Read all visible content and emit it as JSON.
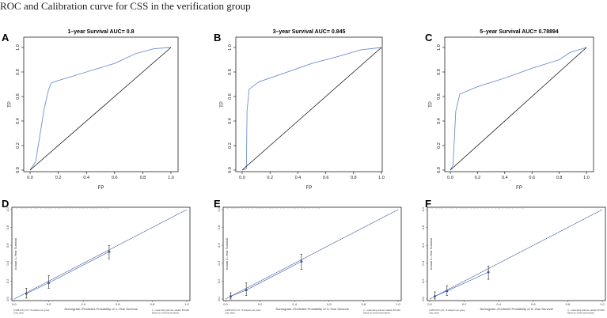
{
  "page_title": "ROC and Calibration curve for CSS in the verification group",
  "chart_data": [
    {
      "type": "line",
      "panel": "A",
      "title": "1–year Survival AUC= 0.8",
      "xlabel": "FP",
      "ylabel": "TP",
      "xlim": [
        0,
        1
      ],
      "ylim": [
        0,
        1
      ],
      "ticks": [
        "0.0",
        "0.2",
        "0.4",
        "0.6",
        "0.8",
        "1.0"
      ],
      "grid": false,
      "series": [
        {
          "x": [
            0,
            0.04,
            0.1,
            0.13,
            0.15,
            0.2,
            0.4,
            0.6,
            0.75,
            0.88,
            1
          ],
          "y": [
            0,
            0.07,
            0.5,
            0.65,
            0.71,
            0.73,
            0.8,
            0.87,
            0.95,
            0.99,
            1
          ],
          "color": "#6f8fd1"
        },
        {
          "x": [
            0,
            1
          ],
          "y": [
            0,
            1
          ],
          "color": "#000000"
        }
      ]
    },
    {
      "type": "line",
      "panel": "B",
      "title": "3–year Survival AUC= 0.845",
      "xlabel": "FP",
      "ylabel": "TP",
      "xlim": [
        0,
        1
      ],
      "ylim": [
        0,
        1
      ],
      "ticks": [
        "0.0",
        "0.2",
        "0.4",
        "0.6",
        "0.8",
        "1.0"
      ],
      "grid": false,
      "series": [
        {
          "x": [
            0,
            0.03,
            0.035,
            0.05,
            0.12,
            0.3,
            0.5,
            0.7,
            0.85,
            1
          ],
          "y": [
            0,
            0.01,
            0.48,
            0.66,
            0.72,
            0.79,
            0.87,
            0.93,
            0.98,
            1
          ],
          "color": "#6f8fd1"
        },
        {
          "x": [
            0,
            1
          ],
          "y": [
            0,
            1
          ],
          "color": "#000000"
        }
      ]
    },
    {
      "type": "line",
      "panel": "C",
      "title": "5–year Survival AUC= 0.78894",
      "xlabel": "FP",
      "ylabel": "TP",
      "xlim": [
        0,
        1
      ],
      "ylim": [
        0,
        1
      ],
      "ticks": [
        "0.0",
        "0.2",
        "0.4",
        "0.6",
        "0.8",
        "1.0"
      ],
      "grid": false,
      "series": [
        {
          "x": [
            0,
            0.02,
            0.04,
            0.07,
            0.2,
            0.4,
            0.6,
            0.8,
            0.88,
            1
          ],
          "y": [
            0,
            0.04,
            0.48,
            0.62,
            0.68,
            0.75,
            0.83,
            0.9,
            0.96,
            1
          ],
          "color": "#6f8fd1"
        },
        {
          "x": [
            0,
            1
          ],
          "y": [
            0,
            1
          ],
          "color": "#000000"
        }
      ]
    },
    {
      "type": "scatter",
      "panel": "D",
      "xlabel": "Nomogram–Predicted Probability of 1–Year Survival",
      "ylabel": "Actual 1–Year Survival",
      "xlim": [
        0,
        1
      ],
      "ylim": [
        0,
        1
      ],
      "ticks": [
        "0.0",
        "0.2",
        "0.4",
        "0.6",
        "0.8",
        "1.0"
      ],
      "points": [
        {
          "x": 0.07,
          "y": 0.06,
          "low": 0.01,
          "high": 0.12
        },
        {
          "x": 0.2,
          "y": 0.18,
          "low": 0.12,
          "high": 0.26
        },
        {
          "x": 0.55,
          "y": 0.53,
          "low": 0.45,
          "high": 0.6
        }
      ],
      "footnote_left": "n=298 d=67 p=5, 70 subjects per group",
      "footnote_left_2": "Gray: ideal",
      "footnote_right": "X – resampling optimism added, B=1000",
      "footnote_right_2": "Based on observed-predicted"
    },
    {
      "type": "scatter",
      "panel": "E",
      "xlabel": "Nomogram–Predicted Probability of 3–Year Survival",
      "ylabel": "Actual 3–Year Survival",
      "xlim": [
        0,
        1
      ],
      "ylim": [
        0,
        1
      ],
      "ticks": [
        "0.0",
        "0.2",
        "0.4",
        "0.6",
        "0.8",
        "1.0"
      ],
      "points": [
        {
          "x": 0.03,
          "y": 0.03,
          "low": 0.0,
          "high": 0.07
        },
        {
          "x": 0.12,
          "y": 0.1,
          "low": 0.04,
          "high": 0.18
        },
        {
          "x": 0.44,
          "y": 0.42,
          "low": 0.33,
          "high": 0.5
        }
      ],
      "footnote_left": "n=298 d=67 p=5, 70 subjects per group",
      "footnote_left_2": "Gray: ideal",
      "footnote_right": "X – resampling optimism added, B=1000",
      "footnote_right_2": "Based on observed-predicted"
    },
    {
      "type": "scatter",
      "panel": "F",
      "xlabel": "Nomogram–Predicted Probability of 5–Year Survival",
      "ylabel": "Actual 5–Year Survival",
      "xlim": [
        0,
        1
      ],
      "ylim": [
        0,
        1
      ],
      "ticks": [
        "0.0",
        "0.2",
        "0.4",
        "0.6",
        "0.8",
        "1.0"
      ],
      "points": [
        {
          "x": 0.03,
          "y": 0.03,
          "low": 0.0,
          "high": 0.08
        },
        {
          "x": 0.1,
          "y": 0.09,
          "low": 0.04,
          "high": 0.15
        },
        {
          "x": 0.34,
          "y": 0.3,
          "low": 0.22,
          "high": 0.37
        }
      ],
      "footnote_left": "n=298 d=67 p=5, 70 subjects per group",
      "footnote_left_2": "Gray: ideal",
      "footnote_right": "X – resampling optimism added, B=1000",
      "footnote_right_2": "Based on observed-predicted"
    }
  ]
}
